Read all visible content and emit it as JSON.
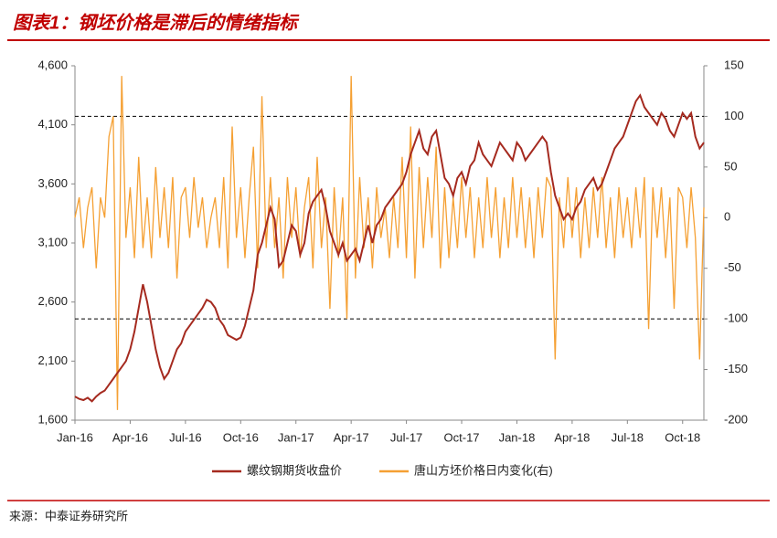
{
  "chart_data": {
    "type": "line",
    "title": "图表1：钢坯价格是滞后的情绪指标",
    "source": "来源：中泰证券研究所",
    "categories": [
      "Jan-16",
      null,
      null,
      null,
      null,
      null,
      null,
      null,
      null,
      null,
      null,
      null,
      null,
      "Apr-16",
      null,
      null,
      null,
      null,
      null,
      null,
      null,
      null,
      null,
      null,
      null,
      null,
      "Jul-16",
      null,
      null,
      null,
      null,
      null,
      null,
      null,
      null,
      null,
      null,
      null,
      null,
      "Oct-16",
      null,
      null,
      null,
      null,
      null,
      null,
      null,
      null,
      null,
      null,
      null,
      null,
      "Jan-17",
      null,
      null,
      null,
      null,
      null,
      null,
      null,
      null,
      null,
      null,
      null,
      null,
      "Apr-17",
      null,
      null,
      null,
      null,
      null,
      null,
      null,
      null,
      null,
      null,
      null,
      null,
      "Jul-17",
      null,
      null,
      null,
      null,
      null,
      null,
      null,
      null,
      null,
      null,
      null,
      null,
      "Oct-17",
      null,
      null,
      null,
      null,
      null,
      null,
      null,
      null,
      null,
      null,
      null,
      null,
      "Jan-18",
      null,
      null,
      null,
      null,
      null,
      null,
      null,
      null,
      null,
      null,
      null,
      null,
      "Apr-18",
      null,
      null,
      null,
      null,
      null,
      null,
      null,
      null,
      null,
      null,
      null,
      null,
      "Jul-18",
      null,
      null,
      null,
      null,
      null,
      null,
      null,
      null,
      null,
      null,
      null,
      null,
      "Oct-18",
      null,
      null,
      null,
      null,
      null
    ],
    "series": [
      {
        "name": "螺纹钢期货收盘价",
        "color": "#a52a1f",
        "axis": "y",
        "values": [
          1800,
          1780,
          1770,
          1790,
          1760,
          1800,
          1830,
          1850,
          1900,
          1950,
          2000,
          2050,
          2100,
          2200,
          2350,
          2550,
          2750,
          2600,
          2400,
          2200,
          2050,
          1950,
          2000,
          2100,
          2200,
          2250,
          2350,
          2400,
          2450,
          2500,
          2550,
          2620,
          2600,
          2550,
          2450,
          2400,
          2320,
          2300,
          2280,
          2300,
          2400,
          2550,
          2700,
          3000,
          3100,
          3250,
          3400,
          3300,
          2900,
          2950,
          3100,
          3250,
          3200,
          3000,
          3100,
          3350,
          3450,
          3500,
          3550,
          3400,
          3200,
          3100,
          3000,
          3100,
          2950,
          3000,
          3050,
          2950,
          3100,
          3250,
          3100,
          3250,
          3300,
          3400,
          3450,
          3500,
          3550,
          3600,
          3700,
          3850,
          3950,
          4050,
          3900,
          3850,
          4000,
          4050,
          3850,
          3650,
          3600,
          3500,
          3650,
          3700,
          3600,
          3750,
          3800,
          3950,
          3850,
          3800,
          3750,
          3850,
          3950,
          3900,
          3850,
          3800,
          3950,
          3900,
          3800,
          3850,
          3900,
          3950,
          4000,
          3950,
          3700,
          3500,
          3400,
          3300,
          3350,
          3300,
          3400,
          3450,
          3550,
          3600,
          3650,
          3550,
          3600,
          3700,
          3800,
          3900,
          3950,
          4000,
          4100,
          4200,
          4300,
          4350,
          4250,
          4200,
          4150,
          4100,
          4200,
          4150,
          4050,
          4000,
          4100,
          4200,
          4150,
          4200,
          4000,
          3900,
          3950
        ]
      },
      {
        "name": "唐山方坯价格日内变化(右)",
        "color": "#f5a033",
        "axis": "y2",
        "values": [
          0,
          20,
          -30,
          10,
          30,
          -50,
          20,
          0,
          80,
          100,
          -190,
          140,
          -20,
          30,
          -40,
          60,
          -30,
          20,
          -40,
          50,
          -20,
          30,
          -30,
          40,
          -60,
          20,
          30,
          -20,
          40,
          -10,
          20,
          -30,
          0,
          20,
          -30,
          40,
          -50,
          90,
          -20,
          30,
          -40,
          20,
          70,
          -50,
          120,
          -30,
          40,
          -30,
          20,
          -60,
          40,
          -20,
          30,
          -40,
          10,
          40,
          -50,
          60,
          -30,
          20,
          -90,
          30,
          -40,
          20,
          -100,
          140,
          -60,
          40,
          -30,
          20,
          -50,
          30,
          -20,
          10,
          -40,
          20,
          -30,
          60,
          -40,
          90,
          -60,
          50,
          -30,
          40,
          -20,
          70,
          -50,
          30,
          -40,
          20,
          -30,
          40,
          -20,
          30,
          -40,
          20,
          -30,
          40,
          -20,
          30,
          -40,
          20,
          -30,
          40,
          -20,
          30,
          -30,
          20,
          -40,
          30,
          -20,
          40,
          30,
          -140,
          20,
          -30,
          40,
          -20,
          30,
          -40,
          20,
          -30,
          30,
          -20,
          40,
          -30,
          20,
          -40,
          30,
          -20,
          20,
          -30,
          30,
          -20,
          40,
          -110,
          30,
          -20,
          30,
          -40,
          20,
          -90,
          30,
          20,
          -30,
          30,
          -20,
          -140,
          10
        ]
      }
    ],
    "ylim": [
      1600,
      4600
    ],
    "yticks": [
      {
        "value": 1600,
        "label": "1,600"
      },
      {
        "value": 2100,
        "label": "2,100"
      },
      {
        "value": 2600,
        "label": "2,600"
      },
      {
        "value": 3100,
        "label": "3,100"
      },
      {
        "value": 3600,
        "label": "3,600"
      },
      {
        "value": 4100,
        "label": "4,100"
      },
      {
        "value": 4600,
        "label": "4,600"
      }
    ],
    "y2lim": [
      -200,
      150
    ],
    "y2ticks": [
      -200,
      -150,
      -100,
      -50,
      0,
      50,
      100,
      150
    ],
    "y2_reference_lines": [
      100,
      -100
    ],
    "legend": "bottom"
  }
}
